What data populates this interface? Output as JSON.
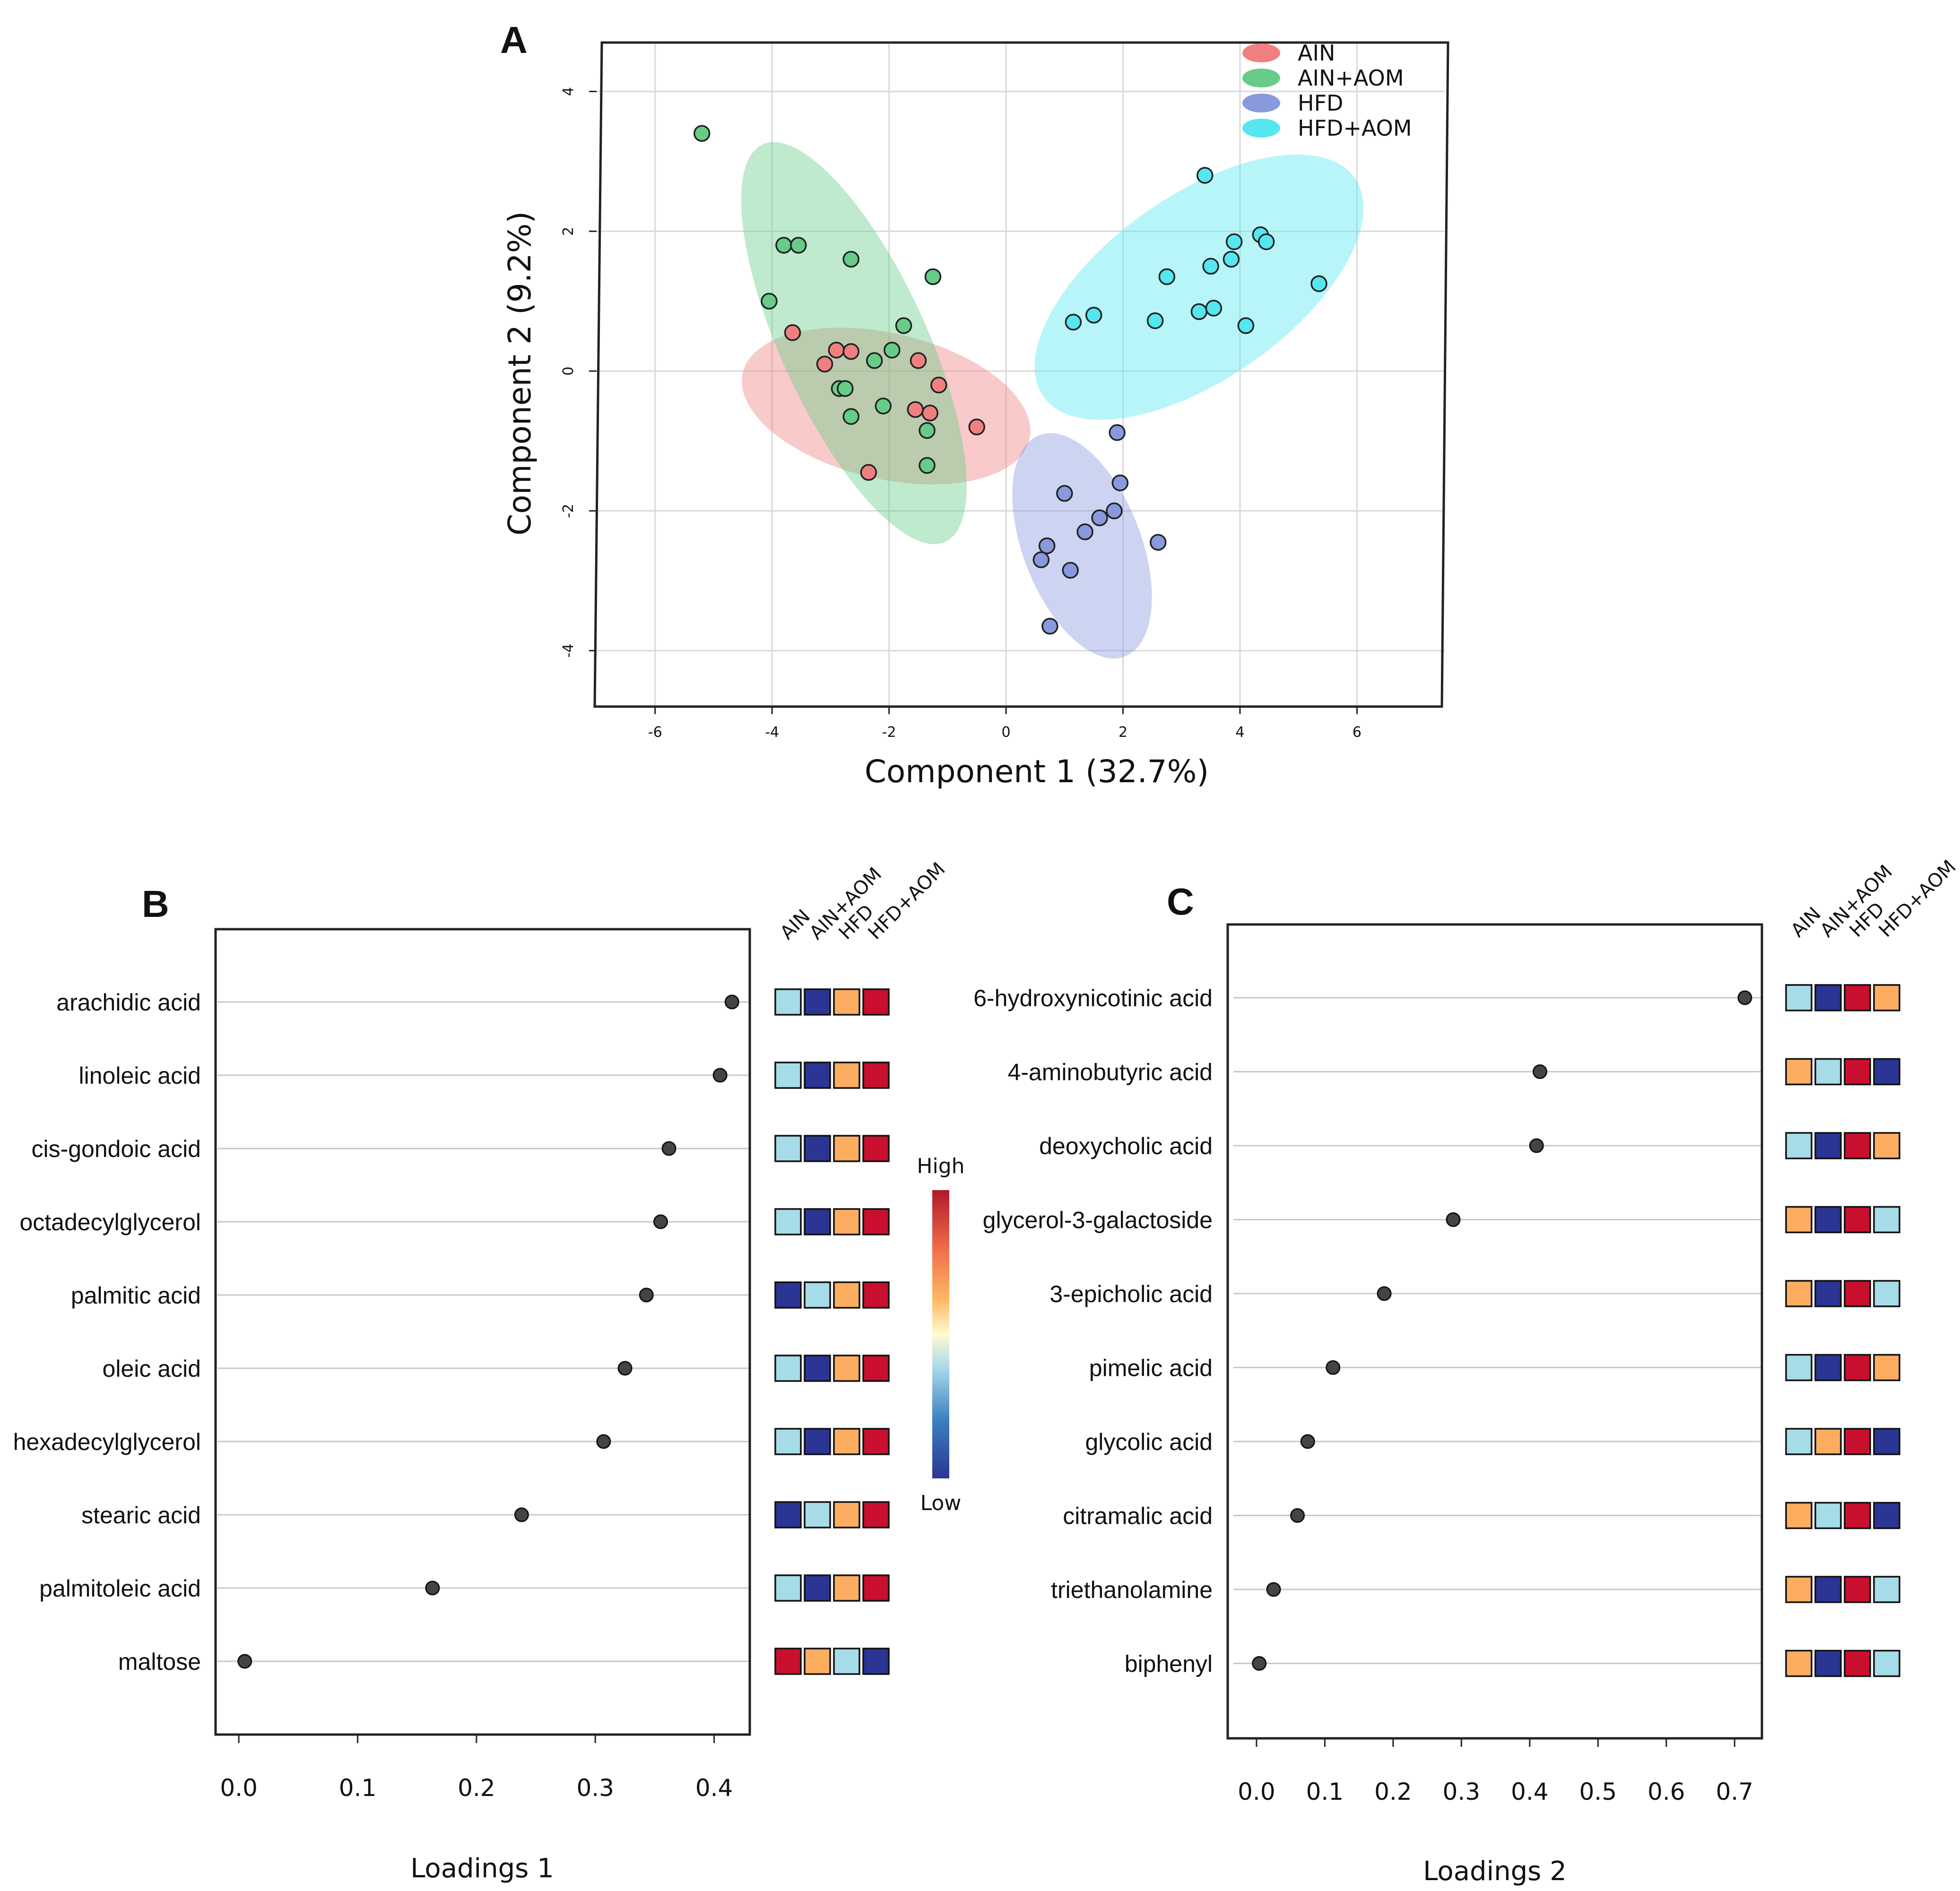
{
  "colors": {
    "AIN": "#f08080",
    "AIN+AOM": "#66cc88",
    "HFD": "#8899dd",
    "HFD+AOM": "#55e6f0",
    "heat_high": "#c8102e",
    "heat_midhigh": "#fdad60",
    "heat_midlow": "#a6dbe8",
    "heat_low": "#2b3593",
    "point": "#444444"
  },
  "heat_color_names": [
    "low",
    "midlow",
    "midhigh",
    "high"
  ],
  "chart_data": [
    {
      "panel": "A",
      "type": "scatter",
      "xlabel": "Component 1 (32.7%)",
      "ylabel": "Component 2 (9.2%)",
      "xlim": [
        -7,
        7.5
      ],
      "ylim": [
        -4.8,
        4.7
      ],
      "xticks": [
        "-6",
        "-4",
        "-2",
        "0",
        "2",
        "4",
        "6"
      ],
      "xtick_values": [
        -6,
        -4,
        -2,
        0,
        2,
        4,
        6
      ],
      "yticks": [
        "4",
        "2",
        "0",
        "-2",
        "-4"
      ],
      "ytick_values": [
        4,
        2,
        0,
        -2,
        -4
      ],
      "grid": true,
      "legend": {
        "position": "top-right",
        "entries": [
          "AIN",
          "AIN+AOM",
          "HFD",
          "HFD+AOM"
        ]
      },
      "ellipses": [
        {
          "group": "AIN",
          "cx": -2.05,
          "cy": -0.5,
          "rx": 2.5,
          "ry": 1.05,
          "angle": -10
        },
        {
          "group": "AIN+AOM",
          "cx": -2.6,
          "cy": 0.4,
          "rx": 3.25,
          "ry": 1.2,
          "angle": -60
        },
        {
          "group": "HFD",
          "cx": 1.3,
          "cy": -2.5,
          "rx": 1.75,
          "ry": 0.98,
          "angle": -62
        },
        {
          "group": "HFD+AOM",
          "cx": 3.3,
          "cy": 1.2,
          "rx": 3.1,
          "ry": 1.38,
          "angle": 28
        }
      ],
      "series": [
        {
          "name": "AIN+AOM",
          "points": [
            [
              -5.2,
              3.4
            ],
            [
              -3.8,
              1.8
            ],
            [
              -3.55,
              1.8
            ],
            [
              -2.65,
              1.6
            ],
            [
              -1.25,
              1.35
            ],
            [
              -4.05,
              1.0
            ],
            [
              -1.75,
              0.65
            ],
            [
              -1.95,
              0.3
            ],
            [
              -2.25,
              0.15
            ],
            [
              -2.85,
              -0.25
            ],
            [
              -2.75,
              -0.25
            ],
            [
              -2.1,
              -0.5
            ],
            [
              -2.65,
              -0.65
            ],
            [
              -1.35,
              -0.85
            ],
            [
              -1.35,
              -1.35
            ]
          ]
        },
        {
          "name": "AIN",
          "points": [
            [
              -3.65,
              0.55
            ],
            [
              -2.9,
              0.3
            ],
            [
              -2.65,
              0.28
            ],
            [
              -3.1,
              0.1
            ],
            [
              -1.5,
              0.15
            ],
            [
              -1.15,
              -0.2
            ],
            [
              -1.55,
              -0.55
            ],
            [
              -1.3,
              -0.6
            ],
            [
              -0.5,
              -0.8
            ],
            [
              -2.35,
              -1.45
            ]
          ]
        },
        {
          "name": "HFD",
          "points": [
            [
              1.9,
              -0.88
            ],
            [
              1.95,
              -1.6
            ],
            [
              1.0,
              -1.75
            ],
            [
              1.85,
              -2.0
            ],
            [
              1.6,
              -2.1
            ],
            [
              1.35,
              -2.3
            ],
            [
              0.7,
              -2.5
            ],
            [
              0.6,
              -2.7
            ],
            [
              2.6,
              -2.45
            ],
            [
              1.1,
              -2.85
            ],
            [
              0.75,
              -3.65
            ]
          ]
        },
        {
          "name": "HFD+AOM",
          "points": [
            [
              3.4,
              2.8
            ],
            [
              4.35,
              1.95
            ],
            [
              4.45,
              1.85
            ],
            [
              3.9,
              1.85
            ],
            [
              3.85,
              1.6
            ],
            [
              3.5,
              1.5
            ],
            [
              2.75,
              1.35
            ],
            [
              5.35,
              1.25
            ],
            [
              1.5,
              0.8
            ],
            [
              1.15,
              0.7
            ],
            [
              2.55,
              0.72
            ],
            [
              3.3,
              0.85
            ],
            [
              3.55,
              0.9
            ],
            [
              4.1,
              0.65
            ]
          ]
        }
      ]
    },
    {
      "panel": "B",
      "type": "scatter",
      "xlabel": "Loadings 1",
      "xlim": [
        -0.01,
        0.43
      ],
      "xticks": [
        "0.0",
        "0.1",
        "0.2",
        "0.3",
        "0.4"
      ],
      "xtick_values": [
        0.0,
        0.1,
        0.2,
        0.3,
        0.4
      ],
      "heat_columns": [
        "AIN",
        "AIN+AOM",
        "HFD",
        "HFD+AOM"
      ],
      "colorbar": {
        "high_label": "High",
        "low_label": "Low"
      },
      "rows": [
        {
          "label": "arachidic acid",
          "value": 0.415,
          "heat": [
            "midlow",
            "low",
            "midhigh",
            "high"
          ]
        },
        {
          "label": "linoleic acid",
          "value": 0.405,
          "heat": [
            "midlow",
            "low",
            "midhigh",
            "high"
          ]
        },
        {
          "label": "cis-gondoic acid",
          "value": 0.362,
          "heat": [
            "midlow",
            "low",
            "midhigh",
            "high"
          ]
        },
        {
          "label": "octadecylglycerol",
          "value": 0.355,
          "heat": [
            "midlow",
            "low",
            "midhigh",
            "high"
          ]
        },
        {
          "label": "palmitic acid",
          "value": 0.343,
          "heat": [
            "low",
            "midlow",
            "midhigh",
            "high"
          ]
        },
        {
          "label": "oleic acid",
          "value": 0.325,
          "heat": [
            "midlow",
            "low",
            "midhigh",
            "high"
          ]
        },
        {
          "label": "hexadecylglycerol",
          "value": 0.307,
          "heat": [
            "midlow",
            "low",
            "midhigh",
            "high"
          ]
        },
        {
          "label": "stearic acid",
          "value": 0.238,
          "heat": [
            "low",
            "midlow",
            "midhigh",
            "high"
          ]
        },
        {
          "label": "palmitoleic acid",
          "value": 0.163,
          "heat": [
            "midlow",
            "low",
            "midhigh",
            "high"
          ]
        },
        {
          "label": "maltose",
          "value": 0.005,
          "heat": [
            "high",
            "midhigh",
            "midlow",
            "low"
          ]
        }
      ]
    },
    {
      "panel": "C",
      "type": "scatter",
      "xlabel": "Loadings 2",
      "xlim": [
        -0.02,
        0.74
      ],
      "xticks": [
        "0.0",
        "0.1",
        "0.2",
        "0.3",
        "0.4",
        "0.5",
        "0.6",
        "0.7"
      ],
      "xtick_values": [
        0.0,
        0.1,
        0.2,
        0.3,
        0.4,
        0.5,
        0.6,
        0.7
      ],
      "heat_columns": [
        "AIN",
        "AIN+AOM",
        "HFD",
        "HFD+AOM"
      ],
      "rows": [
        {
          "label": "6-hydroxynicotinic acid",
          "value": 0.715,
          "heat": [
            "midlow",
            "low",
            "high",
            "midhigh"
          ]
        },
        {
          "label": "4-aminobutyric acid",
          "value": 0.415,
          "heat": [
            "midhigh",
            "midlow",
            "high",
            "low"
          ]
        },
        {
          "label": "deoxycholic acid",
          "value": 0.41,
          "heat": [
            "midlow",
            "low",
            "high",
            "midhigh"
          ]
        },
        {
          "label": "glycerol-3-galactoside",
          "value": 0.288,
          "heat": [
            "midhigh",
            "low",
            "high",
            "midlow"
          ]
        },
        {
          "label": "3-epicholic acid",
          "value": 0.187,
          "heat": [
            "midhigh",
            "low",
            "high",
            "midlow"
          ]
        },
        {
          "label": "pimelic acid",
          "value": 0.112,
          "heat": [
            "midlow",
            "low",
            "high",
            "midhigh"
          ]
        },
        {
          "label": "glycolic acid",
          "value": 0.075,
          "heat": [
            "midlow",
            "midhigh",
            "high",
            "low"
          ]
        },
        {
          "label": "citramalic acid",
          "value": 0.06,
          "heat": [
            "midhigh",
            "midlow",
            "high",
            "low"
          ]
        },
        {
          "label": "triethanolamine",
          "value": 0.025,
          "heat": [
            "midhigh",
            "low",
            "high",
            "midlow"
          ]
        },
        {
          "label": "biphenyl",
          "value": 0.004,
          "heat": [
            "midhigh",
            "low",
            "high",
            "midlow"
          ]
        }
      ]
    }
  ],
  "panel_letters": [
    "A",
    "B",
    "C"
  ]
}
